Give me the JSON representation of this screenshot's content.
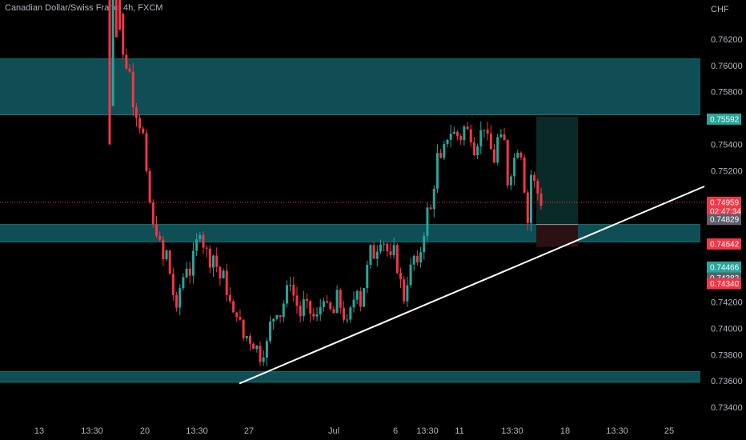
{
  "chart_data": {
    "type": "candlestick",
    "title": "Canadian Dollar/Swiss Franc, 4h, FXCM",
    "currency_label": "CHF",
    "ylim": [
      0.732,
      0.764
    ],
    "y_ticks": [
      "0.76200",
      "0.76000",
      "0.75800",
      "0.75400",
      "0.75200",
      "0.74200",
      "0.74000",
      "0.73800",
      "0.73600",
      "0.73400"
    ],
    "x_ticks": [
      "13",
      "13:30",
      "20",
      "13:30",
      "27",
      "Jul",
      "6",
      "13:30",
      "11",
      "13:30",
      "18",
      "13:30",
      "25"
    ],
    "zones": [
      {
        "from": 0.75625,
        "to": 0.7605
      },
      {
        "from": 0.74658,
        "to": 0.7479
      },
      {
        "from": 0.7359,
        "to": 0.7367
      }
    ],
    "trendline": {
      "start_date": "Jun 27",
      "start_price": 0.7358,
      "end_date": "Jul 24",
      "end_price": 0.7508
    },
    "position": {
      "entry": 0.7479,
      "target": 0.7561,
      "stop": 0.7462
    },
    "current_price_line": 0.74959,
    "price_tags": [
      {
        "label": "0.75592",
        "value": 0.75592,
        "color": "#26a69a"
      },
      {
        "label": "0.74959",
        "value": 0.74959,
        "color": "#f23645"
      },
      {
        "label": "02:47:34",
        "value": 0.7489,
        "color": "#f23645"
      },
      {
        "label": "0.74829",
        "value": 0.74829,
        "color": "#5d606b"
      },
      {
        "label": "0.74642",
        "value": 0.74642,
        "color": "#f23645"
      },
      {
        "label": "0.74466",
        "value": 0.74466,
        "color": "#26a69a"
      },
      {
        "label": "0.74382",
        "value": 0.74382,
        "color": "#5d606b"
      },
      {
        "label": "0.74340",
        "value": 0.7434,
        "color": "#f23645"
      }
    ],
    "colors": {
      "up": "#26a69a",
      "down": "#f23645",
      "zone": "#0f4e55",
      "zone_line": "#127a7a",
      "trendline": "#ffffff",
      "target_area": "#0a2a28",
      "stop_area": "#2a1113"
    },
    "waypoints": [
      [
        0.772,
        0.772
      ],
      [
        0.761,
        0.763
      ],
      [
        0.7575,
        0.759
      ],
      [
        0.753,
        0.7545
      ],
      [
        0.748,
        0.7465
      ],
      [
        0.7458,
        0.744
      ],
      [
        0.7425,
        0.7405
      ],
      [
        0.744,
        0.7455
      ],
      [
        0.747,
        0.7478
      ],
      [
        0.746,
        0.7448
      ],
      [
        0.744,
        0.743
      ],
      [
        0.742,
        0.7405
      ],
      [
        0.7395,
        0.7385
      ],
      [
        0.7375,
        0.7385
      ],
      [
        0.74,
        0.739
      ],
      [
        0.741,
        0.742
      ],
      [
        0.743,
        0.744
      ],
      [
        0.742,
        0.7405
      ],
      [
        0.74,
        0.7408
      ],
      [
        0.7415,
        0.743
      ],
      [
        0.7425,
        0.741
      ],
      [
        0.7405,
        0.74
      ],
      [
        0.7415,
        0.744
      ],
      [
        0.745,
        0.746
      ],
      [
        0.747,
        0.7472
      ],
      [
        0.746,
        0.7445
      ],
      [
        0.743,
        0.742
      ],
      [
        0.744,
        0.746
      ],
      [
        0.747,
        0.749
      ],
      [
        0.752,
        0.754
      ],
      [
        0.755,
        0.7555
      ],
      [
        0.7555,
        0.7545
      ],
      [
        0.7535,
        0.7545
      ],
      [
        0.755,
        0.7555
      ],
      [
        0.7545,
        0.7525
      ],
      [
        0.751,
        0.754
      ],
      [
        0.7555,
        0.754
      ],
      [
        0.752,
        0.7465
      ],
      [
        0.7485,
        0.7496
      ]
    ]
  }
}
